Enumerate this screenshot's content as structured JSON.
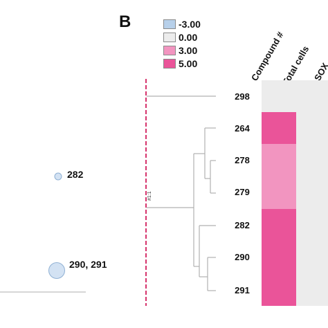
{
  "panel": {
    "letter": "B"
  },
  "legend": [
    {
      "label": "-3.00",
      "color": "#b7d0ea"
    },
    {
      "label": "0.00",
      "color": "#ececec"
    },
    {
      "label": "3.00",
      "color": "#f295c0"
    },
    {
      "label": "5.00",
      "color": "#ea5499"
    }
  ],
  "heatmap": {
    "columns": [
      "Compound #",
      "Total cells",
      "SOX"
    ],
    "rows": [
      {
        "compound": "298",
        "total_cells": 0.0
      },
      {
        "compound": "264",
        "total_cells": 5.0
      },
      {
        "compound": "278",
        "total_cells": 3.0
      },
      {
        "compound": "279",
        "total_cells": 3.0
      },
      {
        "compound": "282",
        "total_cells": 5.0
      },
      {
        "compound": "290",
        "total_cells": 5.0
      },
      {
        "compound": "291",
        "total_cells": 5.0
      }
    ],
    "colors": {
      "neg": "#b7d0ea",
      "zero": "#ececec",
      "mid": "#f295c0",
      "high": "#ea5499"
    }
  },
  "cut_label": "#1:1",
  "bubbles": [
    {
      "label": "282",
      "relative_size": 1
    },
    {
      "label": "290, 291",
      "relative_size": 2.4
    }
  ]
}
